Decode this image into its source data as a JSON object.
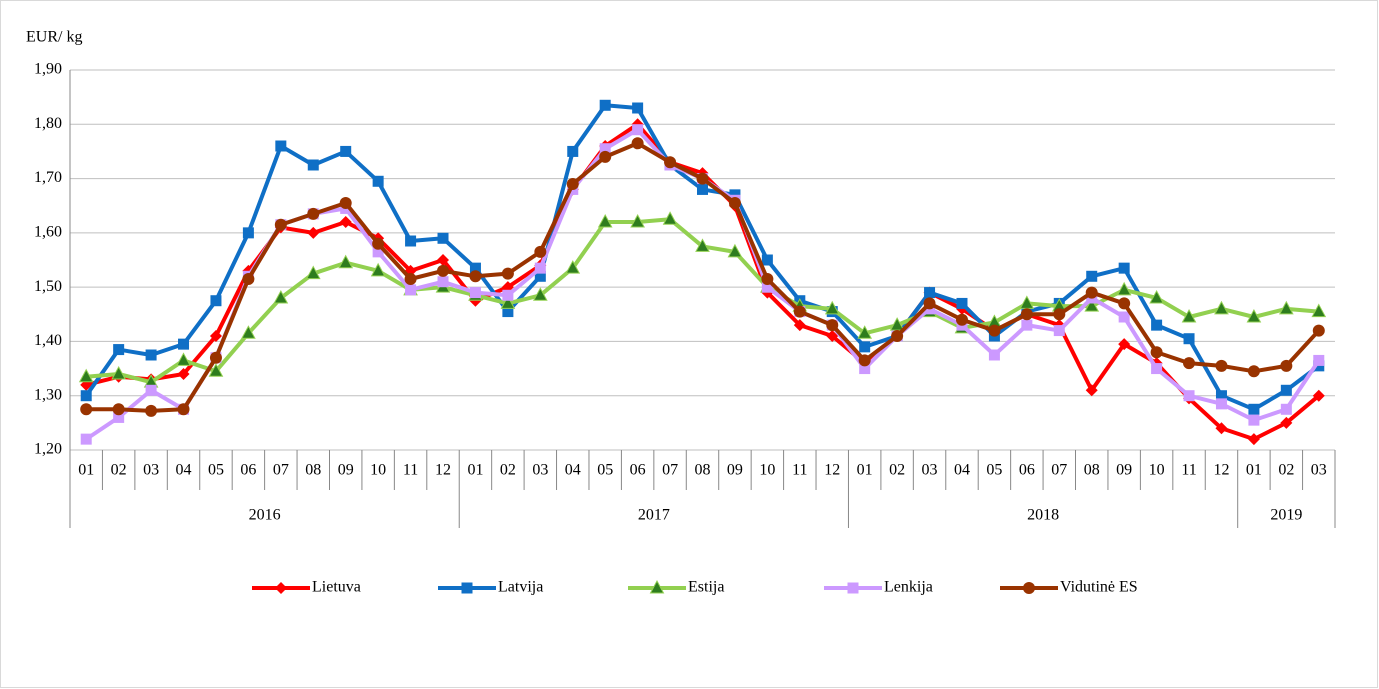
{
  "chart_data": {
    "type": "line",
    "y_axis_label": "EUR/ kg",
    "categories": [
      "01",
      "02",
      "03",
      "04",
      "05",
      "06",
      "07",
      "08",
      "09",
      "10",
      "11",
      "12",
      "01",
      "02",
      "03",
      "04",
      "05",
      "06",
      "07",
      "08",
      "09",
      "10",
      "11",
      "12",
      "01",
      "02",
      "03",
      "04",
      "05",
      "06",
      "07",
      "08",
      "09",
      "10",
      "11",
      "12",
      "01",
      "02",
      "03"
    ],
    "x_groups": [
      {
        "label": "2016",
        "count": 12
      },
      {
        "label": "2017",
        "count": 12
      },
      {
        "label": "2018",
        "count": 12
      },
      {
        "label": "2019",
        "count": 3
      }
    ],
    "ylim": [
      1.2,
      1.9
    ],
    "yticks": [
      {
        "value": 1.2,
        "label": "1,20"
      },
      {
        "value": 1.3,
        "label": "1,30"
      },
      {
        "value": 1.4,
        "label": "1,40"
      },
      {
        "value": 1.5,
        "label": "1,50"
      },
      {
        "value": 1.6,
        "label": "1,60"
      },
      {
        "value": 1.7,
        "label": "1,70"
      },
      {
        "value": 1.8,
        "label": "1,80"
      },
      {
        "value": 1.9,
        "label": "1,90"
      }
    ],
    "grid": true,
    "legend": "bottom",
    "series": [
      {
        "name": "Lietuva",
        "color": "#ff0000",
        "marker": "diamond",
        "values": [
          1.32,
          1.335,
          1.33,
          1.34,
          1.41,
          1.53,
          1.61,
          1.6,
          1.62,
          1.59,
          1.53,
          1.55,
          1.475,
          1.5,
          1.54,
          1.68,
          1.76,
          1.8,
          1.73,
          1.71,
          1.65,
          1.49,
          1.43,
          1.41,
          1.36,
          1.41,
          1.49,
          1.46,
          1.42,
          1.45,
          1.43,
          1.31,
          1.395,
          1.36,
          1.295,
          1.24,
          1.22,
          1.25,
          1.3
        ]
      },
      {
        "name": "Latvija",
        "color": "#0f6fc6",
        "marker": "square",
        "values": [
          1.3,
          1.385,
          1.375,
          1.395,
          1.475,
          1.6,
          1.76,
          1.725,
          1.75,
          1.695,
          1.585,
          1.59,
          1.535,
          1.455,
          1.52,
          1.75,
          1.835,
          1.83,
          1.725,
          1.68,
          1.67,
          1.55,
          1.475,
          1.455,
          1.39,
          1.41,
          1.49,
          1.47,
          1.41,
          1.455,
          1.47,
          1.52,
          1.535,
          1.43,
          1.405,
          1.3,
          1.275,
          1.31,
          1.355
        ]
      },
      {
        "name": "Estija",
        "color": "#92d050",
        "marker": "triangle",
        "values": [
          1.335,
          1.34,
          1.325,
          1.365,
          1.345,
          1.415,
          1.48,
          1.525,
          1.545,
          1.53,
          1.495,
          1.5,
          1.485,
          1.47,
          1.485,
          1.535,
          1.62,
          1.62,
          1.625,
          1.575,
          1.565,
          1.5,
          1.465,
          1.46,
          1.415,
          1.43,
          1.455,
          1.425,
          1.435,
          1.47,
          1.465,
          1.465,
          1.495,
          1.48,
          1.445,
          1.46,
          1.445,
          1.46,
          1.455
        ]
      },
      {
        "name": "Lenkija",
        "color": "#cc99ff",
        "marker": "square",
        "values": [
          1.22,
          1.26,
          1.31,
          1.275,
          1.37,
          1.52,
          1.615,
          1.635,
          1.645,
          1.565,
          1.495,
          1.51,
          1.49,
          1.485,
          1.535,
          1.68,
          1.755,
          1.79,
          1.725,
          1.7,
          1.66,
          1.5,
          1.455,
          1.43,
          1.35,
          1.41,
          1.46,
          1.43,
          1.375,
          1.43,
          1.42,
          1.48,
          1.445,
          1.35,
          1.3,
          1.285,
          1.255,
          1.275,
          1.365
        ]
      },
      {
        "name": "Vidutinė ES",
        "color": "#993300",
        "marker": "circle",
        "values": [
          1.275,
          1.275,
          1.272,
          1.275,
          1.37,
          1.515,
          1.615,
          1.635,
          1.655,
          1.58,
          1.515,
          1.53,
          1.52,
          1.525,
          1.565,
          1.69,
          1.74,
          1.765,
          1.73,
          1.7,
          1.655,
          1.515,
          1.455,
          1.43,
          1.365,
          1.41,
          1.47,
          1.44,
          1.42,
          1.45,
          1.45,
          1.49,
          1.47,
          1.38,
          1.36,
          1.355,
          1.345,
          1.355,
          1.42
        ]
      }
    ]
  }
}
